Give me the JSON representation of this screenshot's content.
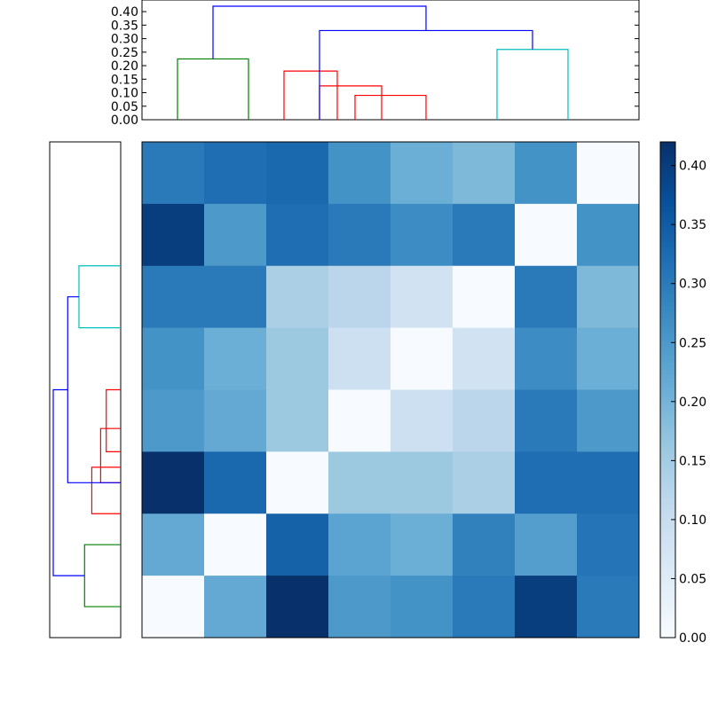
{
  "chart_data": [
    {
      "type": "dendrogram",
      "orientation": "top",
      "ylim": [
        0,
        0.42
      ],
      "yticks": [
        "0.00",
        "0.05",
        "0.10",
        "0.15",
        "0.20",
        "0.25",
        "0.30",
        "0.35",
        "0.40"
      ],
      "links": [
        {
          "left": 1.0,
          "right": 3.0,
          "height": 0.225,
          "color": "#008000"
        },
        {
          "left": 6.0,
          "right": 8.0,
          "height": 0.09,
          "color": "#ff0000"
        },
        {
          "left": 5.0,
          "right": 6.75,
          "height": 0.125,
          "color": "#ff0000"
        },
        {
          "left": 4.0,
          "right": 5.5,
          "height": 0.18,
          "color": "#ff0000"
        },
        {
          "left": 10.0,
          "right": 12.0,
          "height": 0.26,
          "color": "#00bfbf"
        },
        {
          "left": 5.0,
          "right": 11.0,
          "height": 0.33,
          "color": "#0000ff"
        },
        {
          "left": 2.0,
          "right": 8.0,
          "height": 0.42,
          "color": "#0000ff"
        }
      ]
    },
    {
      "type": "dendrogram",
      "orientation": "left",
      "links": [
        {
          "left": 1.0,
          "right": 3.0,
          "height": 0.225,
          "color": "#008000"
        },
        {
          "left": 6.0,
          "right": 8.0,
          "height": 0.09,
          "color": "#ff0000"
        },
        {
          "left": 5.0,
          "right": 6.75,
          "height": 0.125,
          "color": "#ff0000"
        },
        {
          "left": 4.0,
          "right": 5.5,
          "height": 0.18,
          "color": "#ff0000"
        },
        {
          "left": 10.0,
          "right": 12.0,
          "height": 0.26,
          "color": "#00bfbf"
        },
        {
          "left": 5.0,
          "right": 11.0,
          "height": 0.33,
          "color": "#0000ff"
        },
        {
          "left": 2.0,
          "right": 8.0,
          "height": 0.42,
          "color": "#0000ff"
        }
      ]
    },
    {
      "type": "heatmap",
      "rows": 8,
      "cols": 8,
      "colormap": "Blues",
      "vmin": 0,
      "vmax": 0.42,
      "values": [
        [
          0.3,
          0.32,
          0.33,
          0.26,
          0.21,
          0.19,
          0.26,
          0.0
        ],
        [
          0.4,
          0.25,
          0.32,
          0.3,
          0.27,
          0.3,
          0.0,
          0.26
        ],
        [
          0.3,
          0.3,
          0.14,
          0.12,
          0.08,
          0.0,
          0.3,
          0.19
        ],
        [
          0.26,
          0.21,
          0.16,
          0.09,
          0.0,
          0.08,
          0.27,
          0.21
        ],
        [
          0.25,
          0.22,
          0.16,
          0.0,
          0.09,
          0.12,
          0.3,
          0.25
        ],
        [
          0.42,
          0.33,
          0.0,
          0.16,
          0.16,
          0.14,
          0.32,
          0.32
        ],
        [
          0.22,
          0.0,
          0.34,
          0.23,
          0.21,
          0.29,
          0.24,
          0.31
        ],
        [
          0.0,
          0.22,
          0.42,
          0.25,
          0.26,
          0.3,
          0.4,
          0.3
        ]
      ]
    },
    {
      "type": "colorbar",
      "colormap": "Blues",
      "vmin": 0,
      "vmax": 0.42,
      "ticks": [
        "0.00",
        "0.05",
        "0.10",
        "0.15",
        "0.20",
        "0.25",
        "0.30",
        "0.35",
        "0.40"
      ]
    }
  ]
}
